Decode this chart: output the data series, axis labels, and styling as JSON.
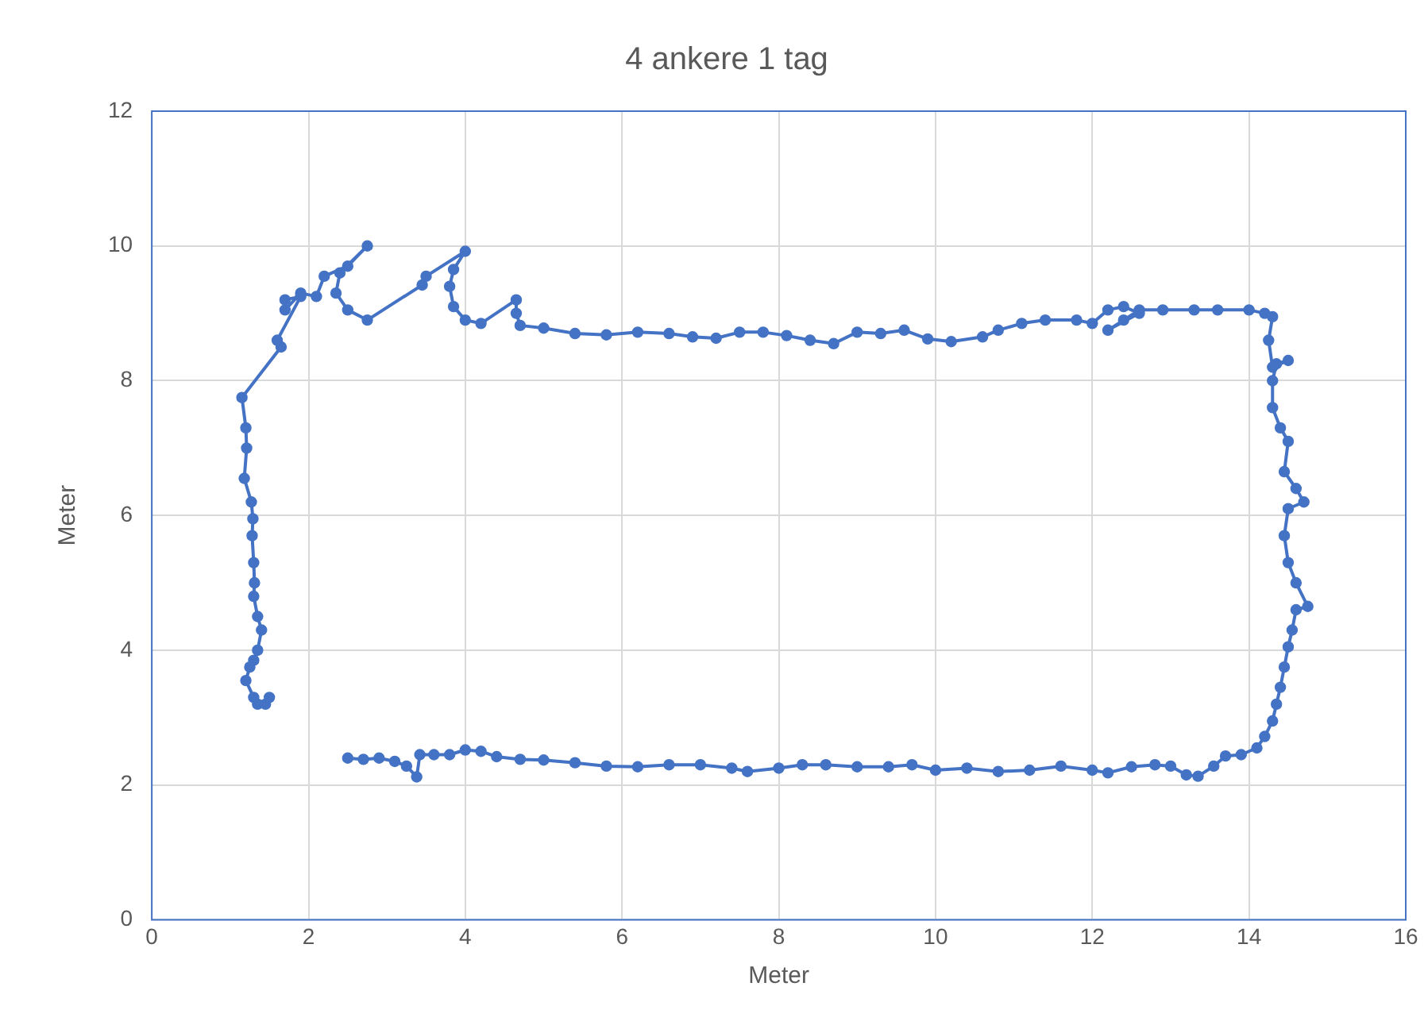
{
  "chart_data": {
    "type": "line",
    "title": "4 ankere 1 tag",
    "xlabel": "Meter",
    "ylabel": "Meter",
    "xlim": [
      0,
      16
    ],
    "xticks": [
      0,
      2,
      4,
      6,
      8,
      10,
      12,
      14,
      16
    ],
    "ylim": [
      0,
      12
    ],
    "yticks": [
      0,
      2,
      4,
      6,
      8,
      10,
      12
    ],
    "grid": true,
    "legend": false,
    "marker": "circle",
    "line_style": "solid",
    "series": [
      {
        "color": "#4472c4",
        "x": [
          2.5,
          2.7,
          2.9,
          3.1,
          3.25,
          3.38,
          3.42,
          3.6,
          3.8,
          4.0,
          4.2,
          4.4,
          4.7,
          5.0,
          5.4,
          5.8,
          6.2,
          6.6,
          7.0,
          7.4,
          7.6,
          8.0,
          8.3,
          8.6,
          9.0,
          9.4,
          9.7,
          10.0,
          10.4,
          10.8,
          11.2,
          11.6,
          12.0,
          12.2,
          12.5,
          12.8,
          13.0,
          13.2,
          13.35,
          13.55,
          13.7,
          13.9,
          14.1,
          14.2,
          14.3,
          14.35,
          14.4,
          14.45,
          14.5,
          14.55,
          14.6,
          14.75,
          14.6,
          14.5,
          14.45,
          14.5,
          14.7,
          14.6,
          14.45,
          14.5,
          14.4,
          14.3,
          14.3,
          14.35,
          14.5,
          14.3,
          14.25,
          14.3,
          14.2,
          14.0,
          13.6,
          13.3,
          12.9,
          12.6,
          12.4,
          12.2,
          12.6,
          12.4,
          12.2,
          12.0,
          11.8,
          11.4,
          11.1,
          10.8,
          10.6,
          10.2,
          9.9,
          9.6,
          9.3,
          9.0,
          8.7,
          8.4,
          8.1,
          7.8,
          7.5,
          7.2,
          6.9,
          6.6,
          6.2,
          5.8,
          5.4,
          5.0,
          4.7,
          4.65,
          4.65,
          4.2,
          4.0,
          3.85,
          3.8,
          3.85,
          4.0,
          3.5,
          3.45,
          2.75,
          2.5,
          2.35,
          2.4,
          2.75,
          2.5,
          2.2,
          2.1,
          1.9,
          1.7,
          1.7,
          1.9,
          1.6,
          1.65,
          1.15,
          1.2,
          1.21,
          1.18,
          1.27,
          1.29,
          1.28,
          1.3,
          1.31,
          1.3,
          1.35,
          1.4,
          1.35,
          1.3,
          1.25,
          1.2,
          1.3,
          1.35,
          1.45,
          1.5
        ],
        "values": [
          2.4,
          2.38,
          2.4,
          2.35,
          2.28,
          2.12,
          2.45,
          2.45,
          2.45,
          2.52,
          2.5,
          2.42,
          2.38,
          2.37,
          2.33,
          2.28,
          2.27,
          2.3,
          2.3,
          2.25,
          2.2,
          2.25,
          2.3,
          2.3,
          2.27,
          2.27,
          2.3,
          2.22,
          2.25,
          2.2,
          2.22,
          2.28,
          2.22,
          2.18,
          2.27,
          2.3,
          2.28,
          2.15,
          2.13,
          2.28,
          2.43,
          2.45,
          2.55,
          2.72,
          2.95,
          3.2,
          3.45,
          3.75,
          4.05,
          4.3,
          4.6,
          4.65,
          5.0,
          5.3,
          5.7,
          6.1,
          6.2,
          6.4,
          6.65,
          7.1,
          7.3,
          7.6,
          8.0,
          8.25,
          8.3,
          8.2,
          8.6,
          8.95,
          9.0,
          9.05,
          9.05,
          9.05,
          9.05,
          9.05,
          8.9,
          8.75,
          9.0,
          9.1,
          9.05,
          8.85,
          8.9,
          8.9,
          8.85,
          8.75,
          8.65,
          8.58,
          8.62,
          8.75,
          8.7,
          8.72,
          8.55,
          8.6,
          8.67,
          8.72,
          8.72,
          8.63,
          8.65,
          8.7,
          8.72,
          8.68,
          8.7,
          8.78,
          8.82,
          9.0,
          9.2,
          8.85,
          8.9,
          9.1,
          9.4,
          9.65,
          9.92,
          9.55,
          9.42,
          8.9,
          9.05,
          9.3,
          9.6,
          10.0,
          9.7,
          9.55,
          9.25,
          9.3,
          9.05,
          9.2,
          9.25,
          8.6,
          8.5,
          7.75,
          7.3,
          7.0,
          6.55,
          6.2,
          5.95,
          5.7,
          5.3,
          5.0,
          4.8,
          4.5,
          4.3,
          4.0,
          3.85,
          3.75,
          3.55,
          3.3,
          3.2,
          3.2,
          3.3
        ]
      }
    ]
  }
}
